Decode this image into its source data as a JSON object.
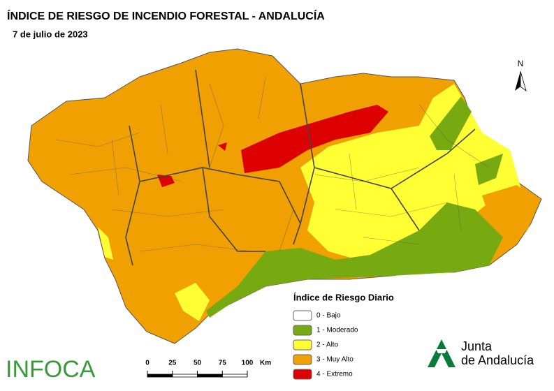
{
  "title": "ÍNDICE DE RIESGO DE INCENDIO FORESTAL - ANDALUCÍA",
  "date": "7 de julio de 2023",
  "north": "N",
  "legend": {
    "title": "Índice de Riesgo Diario",
    "items": [
      {
        "label": "0 - Bajo",
        "color": "#ffffff"
      },
      {
        "label": "1 - Moderado",
        "color": "#77aa11"
      },
      {
        "label": "2 - Alto",
        "color": "#ffff33"
      },
      {
        "label": "3 - Muy Alto",
        "color": "#f0a000"
      },
      {
        "label": "4 - Extremo",
        "color": "#dd0000"
      }
    ]
  },
  "scale_bar": {
    "ticks": [
      0,
      25,
      50,
      75,
      100
    ],
    "unit": "Km"
  },
  "logos": {
    "infoca": "INFOCA",
    "junta": [
      "Junta",
      "de Andalucía"
    ]
  }
}
